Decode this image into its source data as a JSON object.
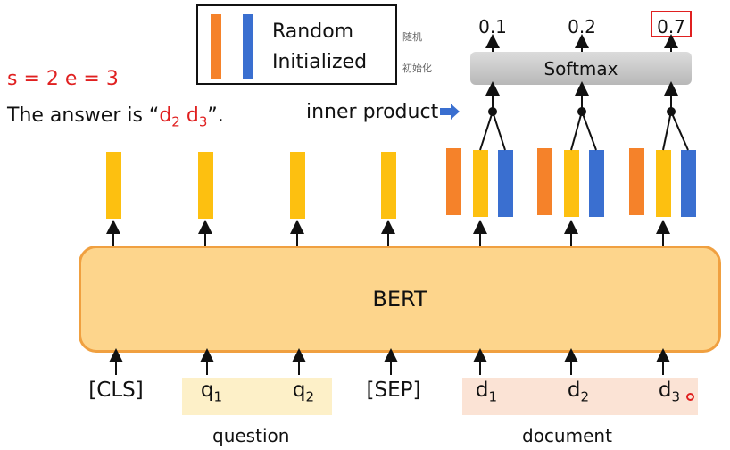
{
  "legend": {
    "line1": "Random",
    "line2": "Initialized",
    "cn1": "随机",
    "cn2": "初始化"
  },
  "left": {
    "se": "s = 2   e = 3",
    "answer_prefix": "The answer is “",
    "answer_d": "d",
    "answer_2": "2",
    "answer_d3": "d",
    "answer_3": "3",
    "answer_suffix": "”."
  },
  "inner_product": "inner product",
  "softmax": {
    "label": "Softmax",
    "outputs": [
      "0.1",
      "0.2",
      "0.7"
    ]
  },
  "bert": "BERT",
  "tokens": {
    "cls": "[CLS]",
    "q": "q",
    "sep": "[SEP]",
    "d": "d",
    "s1": "1",
    "s2": "2",
    "s3": "3"
  },
  "groups": {
    "question": "question",
    "document": "document"
  },
  "colors": {
    "orange": "#f5822a",
    "blue": "#3a6fd0",
    "yellow": "#fdc010",
    "highlight": "#e02020"
  }
}
